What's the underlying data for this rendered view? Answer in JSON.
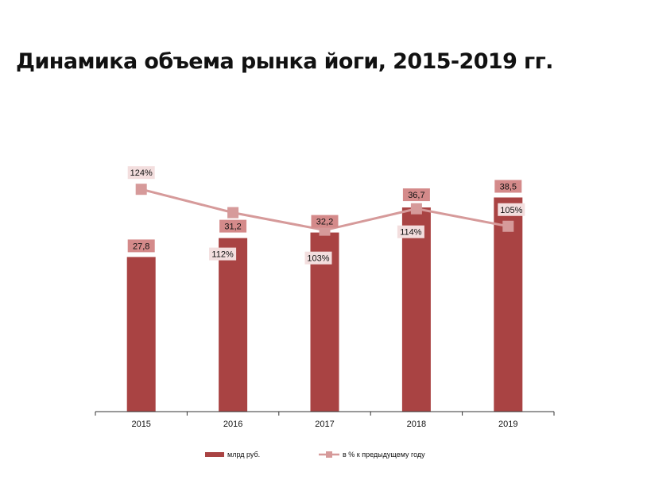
{
  "title": "Динамика объема рынка йоги, 2015-2019 гг.",
  "colors": {
    "bar": "#a94343",
    "bar_label_bg": "#d48a8a",
    "line": "#d69a9a",
    "line_label_bg": "#f3dede"
  },
  "chart_data": {
    "type": "bar",
    "categories": [
      "2015",
      "2016",
      "2017",
      "2018",
      "2019"
    ],
    "series": [
      {
        "name": "млрд руб.",
        "type": "bar",
        "values": [
          27.8,
          31.2,
          32.2,
          36.7,
          38.5
        ],
        "labels": [
          "27,8",
          "31,2",
          "32,2",
          "36,7",
          "38,5"
        ]
      },
      {
        "name": "в % к предыдущему году",
        "type": "line",
        "values": [
          124,
          112,
          103,
          114,
          105
        ],
        "labels": [
          "124%",
          "112%",
          "103%",
          "114%",
          "105%"
        ]
      }
    ],
    "legend": "bottom",
    "grid": false
  }
}
